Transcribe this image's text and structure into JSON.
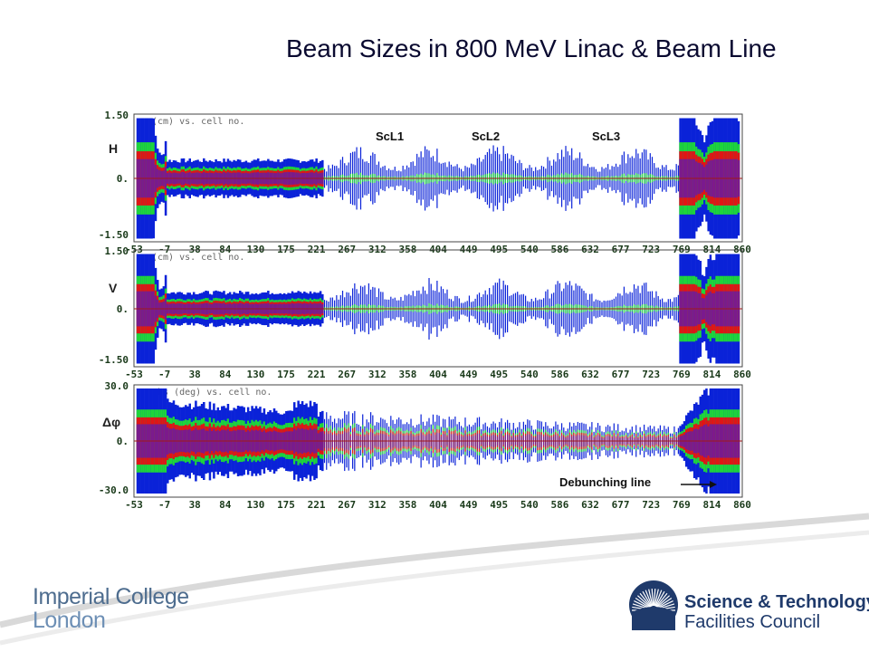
{
  "title": "Beam Sizes in 800 MeV Linac & Beam Line",
  "colors": {
    "outer": "#0a22d8",
    "middle": "#1ed63a",
    "inner": "#e21414",
    "core": "#7a1a8e",
    "axis": "#a01818"
  },
  "chart_data": [
    {
      "type": "area",
      "panel": "H",
      "plot_header": "(cm) vs. cell no.",
      "ytick_labels": [
        "1.50",
        "0.",
        "-1.50"
      ],
      "ylim": [
        -1.5,
        1.5
      ],
      "xtick_labels": [
        "-53",
        "-7",
        "38",
        "84",
        "130",
        "175",
        "221",
        "267",
        "312",
        "358",
        "404",
        "449",
        "495",
        "540",
        "586",
        "632",
        "677",
        "723",
        "769",
        "814",
        "860"
      ]
    },
    {
      "type": "area",
      "panel": "V",
      "plot_header": "(cm) vs. cell no.",
      "ytick_labels": [
        "1.50",
        "0.",
        "-1.50"
      ],
      "ylim": [
        -1.5,
        1.5
      ],
      "xtick_labels": [
        "-53",
        "-7",
        "38",
        "84",
        "130",
        "175",
        "221",
        "267",
        "312",
        "358",
        "404",
        "449",
        "495",
        "540",
        "586",
        "632",
        "677",
        "723",
        "769",
        "814",
        "860"
      ]
    },
    {
      "type": "area",
      "panel": "Δφ",
      "plot_header": "phs (deg) vs. cell no.",
      "ytick_labels": [
        "30.0",
        "0.",
        "-30.0"
      ],
      "ylim": [
        -30,
        30
      ],
      "xtick_labels": [
        "-53",
        "-7",
        "38",
        "84",
        "130",
        "175",
        "221",
        "267",
        "312",
        "358",
        "404",
        "449",
        "495",
        "540",
        "586",
        "632",
        "677",
        "723",
        "769",
        "814",
        "860"
      ]
    }
  ],
  "annotations": {
    "scl1": "ScL1",
    "scl2": "ScL2",
    "scl3": "ScL3",
    "debunching": "Debunching  line"
  },
  "logos": {
    "imperial_line1": "Imperial College",
    "imperial_line2": "London",
    "stfc_line1": "Science & Technology",
    "stfc_line2": "Facilities Council"
  }
}
